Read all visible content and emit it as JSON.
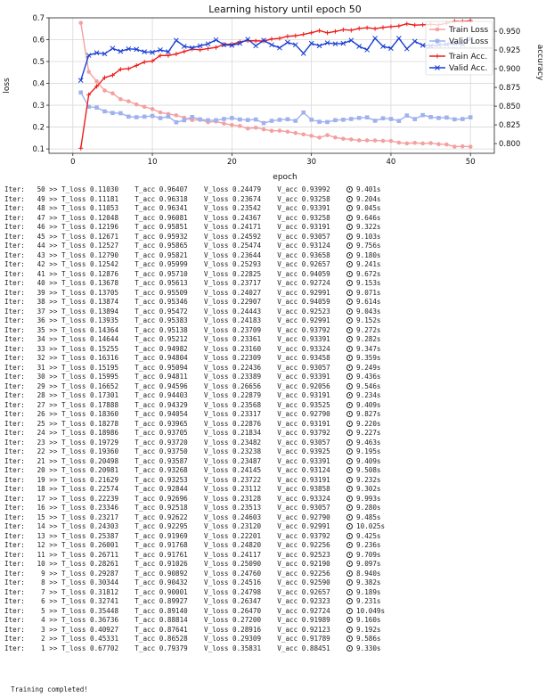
{
  "chart_data": {
    "type": "line",
    "title": "Learning history until epoch 50",
    "xlabel": "epoch",
    "ylabel_left": "loss",
    "ylabel_right": "accuracy",
    "xlim": [
      -3,
      53
    ],
    "ylim_left": [
      0.08,
      0.7
    ],
    "ylim_right": [
      0.787,
      0.968
    ],
    "xticks": [
      0,
      10,
      20,
      30,
      40,
      50
    ],
    "yticks_left": [
      0.1,
      0.2,
      0.3,
      0.4,
      0.5,
      0.6,
      0.7
    ],
    "yticks_right": [
      0.8,
      0.825,
      0.85,
      0.875,
      0.9,
      0.925,
      0.95
    ],
    "grid": true,
    "legend_position": "top-right",
    "x": [
      1,
      2,
      3,
      4,
      5,
      6,
      7,
      8,
      9,
      10,
      11,
      12,
      13,
      14,
      15,
      16,
      17,
      18,
      19,
      20,
      21,
      22,
      23,
      24,
      25,
      26,
      27,
      28,
      29,
      30,
      31,
      32,
      33,
      34,
      35,
      36,
      37,
      38,
      39,
      40,
      41,
      42,
      43,
      44,
      45,
      46,
      47,
      48,
      49,
      50
    ],
    "series": [
      {
        "name": "Train Loss",
        "axis": "left",
        "color": "#f4a0a0",
        "marker": "circle",
        "values": [
          0.67702,
          0.45331,
          0.40927,
          0.36736,
          0.35448,
          0.32741,
          0.31812,
          0.30344,
          0.29287,
          0.28261,
          0.26711,
          0.26001,
          0.25387,
          0.24303,
          0.23217,
          0.23346,
          0.22239,
          0.22574,
          0.21629,
          0.20981,
          0.20498,
          0.1936,
          0.19729,
          0.18986,
          0.18278,
          0.1836,
          0.17888,
          0.17301,
          0.16652,
          0.15995,
          0.15195,
          0.16316,
          0.15255,
          0.14644,
          0.14364,
          0.13935,
          0.13894,
          0.13874,
          0.13705,
          0.13678,
          0.12876,
          0.12542,
          0.1279,
          0.12527,
          0.12671,
          0.12196,
          0.12048,
          0.11053,
          0.11181,
          0.1103
        ]
      },
      {
        "name": "Valid Loss",
        "axis": "left",
        "color": "#9fb2ee",
        "marker": "square",
        "values": [
          0.35831,
          0.29309,
          0.28916,
          0.272,
          0.2647,
          0.26347,
          0.24798,
          0.24516,
          0.2476,
          0.2509,
          0.24117,
          0.2482,
          0.22201,
          0.2312,
          0.24603,
          0.23513,
          0.23128,
          0.23112,
          0.23722,
          0.24145,
          0.23487,
          0.23238,
          0.23482,
          0.21834,
          0.22876,
          0.23317,
          0.23568,
          0.22879,
          0.26656,
          0.23389,
          0.22436,
          0.22309,
          0.2316,
          0.23361,
          0.23709,
          0.24183,
          0.24443,
          0.22907,
          0.24027,
          0.23717,
          0.22825,
          0.25293,
          0.23644,
          0.25474,
          0.24592,
          0.24171,
          0.24367,
          0.23542,
          0.23674,
          0.24479
        ]
      },
      {
        "name": "Train Acc.",
        "axis": "right",
        "color": "#ee1c1c",
        "marker": "plus",
        "values": [
          0.79379,
          0.86528,
          0.87641,
          0.88814,
          0.8914,
          0.89927,
          0.90001,
          0.90432,
          0.90892,
          0.91026,
          0.91761,
          0.91768,
          0.91969,
          0.92295,
          0.92622,
          0.92518,
          0.92696,
          0.92844,
          0.93253,
          0.93268,
          0.93587,
          0.9375,
          0.9372,
          0.93705,
          0.93965,
          0.94054,
          0.94329,
          0.94403,
          0.94596,
          0.94811,
          0.95094,
          0.94804,
          0.94982,
          0.95212,
          0.95138,
          0.95383,
          0.95472,
          0.95346,
          0.95509,
          0.95613,
          0.9571,
          0.95999,
          0.95821,
          0.95865,
          0.95932,
          0.95851,
          0.96081,
          0.96341,
          0.96318,
          0.96407
        ]
      },
      {
        "name": "Valid Acc.",
        "axis": "right",
        "color": "#1a3fd6",
        "marker": "x",
        "values": [
          0.88451,
          0.91789,
          0.92123,
          0.91989,
          0.92724,
          0.92323,
          0.92657,
          0.9259,
          0.92256,
          0.9219,
          0.92523,
          0.92256,
          0.93792,
          0.92991,
          0.9279,
          0.93057,
          0.93324,
          0.93858,
          0.93191,
          0.93124,
          0.93391,
          0.93925,
          0.93057,
          0.93792,
          0.93191,
          0.9279,
          0.93525,
          0.93191,
          0.92056,
          0.93391,
          0.93057,
          0.93458,
          0.93324,
          0.93391,
          0.93792,
          0.92991,
          0.92523,
          0.94059,
          0.92991,
          0.92724,
          0.94059,
          0.92657,
          0.93658,
          0.93124,
          0.93057,
          0.93191,
          0.93258,
          0.93391,
          0.93258,
          0.93992
        ]
      }
    ]
  },
  "log": {
    "rows": [
      {
        "ep": 50,
        "tl": "0.11030",
        "ta": "0.96407",
        "vl": "0.24479",
        "va": "0.93992",
        "t": "9.401s"
      },
      {
        "ep": 49,
        "tl": "0.11181",
        "ta": "0.96318",
        "vl": "0.23674",
        "va": "0.93258",
        "t": "9.204s"
      },
      {
        "ep": 48,
        "tl": "0.11053",
        "ta": "0.96341",
        "vl": "0.23542",
        "va": "0.93391",
        "t": "9.045s"
      },
      {
        "ep": 47,
        "tl": "0.12048",
        "ta": "0.96081",
        "vl": "0.24367",
        "va": "0.93258",
        "t": "9.646s"
      },
      {
        "ep": 46,
        "tl": "0.12196",
        "ta": "0.95851",
        "vl": "0.24171",
        "va": "0.93191",
        "t": "9.322s"
      },
      {
        "ep": 45,
        "tl": "0.12671",
        "ta": "0.95932",
        "vl": "0.24592",
        "va": "0.93057",
        "t": "9.103s"
      },
      {
        "ep": 44,
        "tl": "0.12527",
        "ta": "0.95865",
        "vl": "0.25474",
        "va": "0.93124",
        "t": "9.756s"
      },
      {
        "ep": 43,
        "tl": "0.12790",
        "ta": "0.95821",
        "vl": "0.23644",
        "va": "0.93658",
        "t": "9.180s"
      },
      {
        "ep": 42,
        "tl": "0.12542",
        "ta": "0.95999",
        "vl": "0.25293",
        "va": "0.92657",
        "t": "9.241s"
      },
      {
        "ep": 41,
        "tl": "0.12876",
        "ta": "0.95710",
        "vl": "0.22825",
        "va": "0.94059",
        "t": "9.672s"
      },
      {
        "ep": 40,
        "tl": "0.13678",
        "ta": "0.95613",
        "vl": "0.23717",
        "va": "0.92724",
        "t": "9.153s"
      },
      {
        "ep": 39,
        "tl": "0.13705",
        "ta": "0.95509",
        "vl": "0.24027",
        "va": "0.92991",
        "t": "9.071s"
      },
      {
        "ep": 38,
        "tl": "0.13874",
        "ta": "0.95346",
        "vl": "0.22907",
        "va": "0.94059",
        "t": "9.614s"
      },
      {
        "ep": 37,
        "tl": "0.13894",
        "ta": "0.95472",
        "vl": "0.24443",
        "va": "0.92523",
        "t": "9.043s"
      },
      {
        "ep": 36,
        "tl": "0.13935",
        "ta": "0.95383",
        "vl": "0.24183",
        "va": "0.92991",
        "t": "9.152s"
      },
      {
        "ep": 35,
        "tl": "0.14364",
        "ta": "0.95138",
        "vl": "0.23709",
        "va": "0.93792",
        "t": "9.272s"
      },
      {
        "ep": 34,
        "tl": "0.14644",
        "ta": "0.95212",
        "vl": "0.23361",
        "va": "0.93391",
        "t": "9.282s"
      },
      {
        "ep": 33,
        "tl": "0.15255",
        "ta": "0.94982",
        "vl": "0.23160",
        "va": "0.93324",
        "t": "9.347s"
      },
      {
        "ep": 32,
        "tl": "0.16316",
        "ta": "0.94804",
        "vl": "0.22309",
        "va": "0.93458",
        "t": "9.359s"
      },
      {
        "ep": 31,
        "tl": "0.15195",
        "ta": "0.95094",
        "vl": "0.22436",
        "va": "0.93057",
        "t": "9.249s"
      },
      {
        "ep": 30,
        "tl": "0.15995",
        "ta": "0.94811",
        "vl": "0.23389",
        "va": "0.93391",
        "t": "9.436s"
      },
      {
        "ep": 29,
        "tl": "0.16652",
        "ta": "0.94596",
        "vl": "0.26656",
        "va": "0.92056",
        "t": "9.546s"
      },
      {
        "ep": 28,
        "tl": "0.17301",
        "ta": "0.94403",
        "vl": "0.22879",
        "va": "0.93191",
        "t": "9.234s"
      },
      {
        "ep": 27,
        "tl": "0.17888",
        "ta": "0.94329",
        "vl": "0.23568",
        "va": "0.93525",
        "t": "9.409s"
      },
      {
        "ep": 26,
        "tl": "0.18360",
        "ta": "0.94054",
        "vl": "0.23317",
        "va": "0.92790",
        "t": "9.827s"
      },
      {
        "ep": 25,
        "tl": "0.18278",
        "ta": "0.93965",
        "vl": "0.22876",
        "va": "0.93191",
        "t": "9.220s"
      },
      {
        "ep": 24,
        "tl": "0.18986",
        "ta": "0.93705",
        "vl": "0.21834",
        "va": "0.93792",
        "t": "9.227s"
      },
      {
        "ep": 23,
        "tl": "0.19729",
        "ta": "0.93720",
        "vl": "0.23482",
        "va": "0.93057",
        "t": "9.463s"
      },
      {
        "ep": 22,
        "tl": "0.19360",
        "ta": "0.93750",
        "vl": "0.23238",
        "va": "0.93925",
        "t": "9.195s"
      },
      {
        "ep": 21,
        "tl": "0.20498",
        "ta": "0.93587",
        "vl": "0.23487",
        "va": "0.93391",
        "t": "9.409s"
      },
      {
        "ep": 20,
        "tl": "0.20981",
        "ta": "0.93268",
        "vl": "0.24145",
        "va": "0.93124",
        "t": "9.508s"
      },
      {
        "ep": 19,
        "tl": "0.21629",
        "ta": "0.93253",
        "vl": "0.23722",
        "va": "0.93191",
        "t": "9.232s"
      },
      {
        "ep": 18,
        "tl": "0.22574",
        "ta": "0.92844",
        "vl": "0.23112",
        "va": "0.93858",
        "t": "9.302s"
      },
      {
        "ep": 17,
        "tl": "0.22239",
        "ta": "0.92696",
        "vl": "0.23128",
        "va": "0.93324",
        "t": "9.993s"
      },
      {
        "ep": 16,
        "tl": "0.23346",
        "ta": "0.92518",
        "vl": "0.23513",
        "va": "0.93057",
        "t": "9.280s"
      },
      {
        "ep": 15,
        "tl": "0.23217",
        "ta": "0.92622",
        "vl": "0.24603",
        "va": "0.92790",
        "t": "9.485s"
      },
      {
        "ep": 14,
        "tl": "0.24303",
        "ta": "0.92295",
        "vl": "0.23120",
        "va": "0.92991",
        "t": "10.025s"
      },
      {
        "ep": 13,
        "tl": "0.25387",
        "ta": "0.91969",
        "vl": "0.22201",
        "va": "0.93792",
        "t": "9.425s"
      },
      {
        "ep": 12,
        "tl": "0.26001",
        "ta": "0.91768",
        "vl": "0.24820",
        "va": "0.92256",
        "t": "9.236s"
      },
      {
        "ep": 11,
        "tl": "0.26711",
        "ta": "0.91761",
        "vl": "0.24117",
        "va": "0.92523",
        "t": "9.709s"
      },
      {
        "ep": 10,
        "tl": "0.28261",
        "ta": "0.91026",
        "vl": "0.25090",
        "va": "0.92190",
        "t": "9.097s"
      },
      {
        "ep": 9,
        "tl": "0.29287",
        "ta": "0.90892",
        "vl": "0.24760",
        "va": "0.92256",
        "t": "8.940s"
      },
      {
        "ep": 8,
        "tl": "0.30344",
        "ta": "0.90432",
        "vl": "0.24516",
        "va": "0.92590",
        "t": "9.382s"
      },
      {
        "ep": 7,
        "tl": "0.31812",
        "ta": "0.90001",
        "vl": "0.24798",
        "va": "0.92657",
        "t": "9.189s"
      },
      {
        "ep": 6,
        "tl": "0.32741",
        "ta": "0.89927",
        "vl": "0.26347",
        "va": "0.92323",
        "t": "9.231s"
      },
      {
        "ep": 5,
        "tl": "0.35448",
        "ta": "0.89140",
        "vl": "0.26470",
        "va": "0.92724",
        "t": "10.049s"
      },
      {
        "ep": 4,
        "tl": "0.36736",
        "ta": "0.88814",
        "vl": "0.27200",
        "va": "0.91989",
        "t": "9.160s"
      },
      {
        "ep": 3,
        "tl": "0.40927",
        "ta": "0.87641",
        "vl": "0.28916",
        "va": "0.92123",
        "t": "9.192s"
      },
      {
        "ep": 2,
        "tl": "0.45331",
        "ta": "0.86528",
        "vl": "0.29309",
        "va": "0.91789",
        "t": "9.586s"
      },
      {
        "ep": 1,
        "tl": "0.67702",
        "ta": "0.79379",
        "vl": "0.35831",
        "va": "0.88451",
        "t": "9.330s"
      }
    ],
    "final_message": "Training completed!"
  }
}
